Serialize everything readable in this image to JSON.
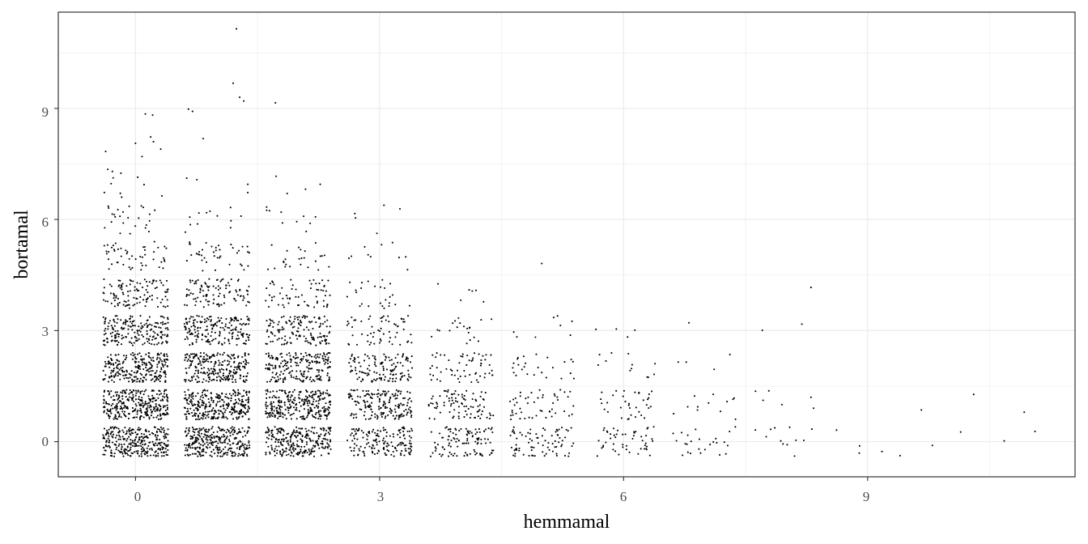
{
  "chart_data": {
    "type": "scatter",
    "title": "",
    "xlabel": "hemmamal",
    "ylabel": "bortamal",
    "xlim": [
      -0.95,
      11.55
    ],
    "ylim": [
      -0.95,
      11.6
    ],
    "xticks": [
      0,
      3,
      6,
      9
    ],
    "yticks": [
      0,
      3,
      6,
      9
    ],
    "x_tick_labels": [
      "0",
      "3",
      "6",
      "9"
    ],
    "y_tick_labels": [
      "0",
      "3",
      "6",
      "9"
    ],
    "grid": true,
    "legend": "none",
    "jitter": 0.4,
    "colors": {
      "point": "#000000",
      "grid": "#ebebeb",
      "panel_border": "#333333",
      "tick_label": "#4d4d4d"
    },
    "cell_counts": [
      [
        0,
        0,
        300
      ],
      [
        0,
        1,
        300
      ],
      [
        0,
        2,
        250
      ],
      [
        0,
        3,
        200
      ],
      [
        0,
        4,
        110
      ],
      [
        0,
        5,
        50
      ],
      [
        0,
        6,
        25
      ],
      [
        0,
        7,
        10
      ],
      [
        0,
        8,
        3
      ],
      [
        1,
        0,
        300
      ],
      [
        1,
        1,
        300
      ],
      [
        1,
        2,
        250
      ],
      [
        1,
        3,
        190
      ],
      [
        1,
        4,
        100
      ],
      [
        1,
        5,
        40
      ],
      [
        1,
        6,
        12
      ],
      [
        1,
        7,
        3
      ],
      [
        1,
        8,
        1
      ],
      [
        2,
        0,
        260
      ],
      [
        2,
        1,
        280
      ],
      [
        2,
        2,
        210
      ],
      [
        2,
        3,
        140
      ],
      [
        2,
        4,
        60
      ],
      [
        2,
        5,
        25
      ],
      [
        2,
        6,
        10
      ],
      [
        2,
        7,
        3
      ],
      [
        3,
        0,
        160
      ],
      [
        3,
        1,
        180
      ],
      [
        3,
        2,
        130
      ],
      [
        3,
        3,
        60
      ],
      [
        3,
        4,
        25
      ],
      [
        3,
        5,
        10
      ],
      [
        3,
        6,
        5
      ],
      [
        4,
        0,
        110
      ],
      [
        4,
        1,
        90
      ],
      [
        4,
        2,
        60
      ],
      [
        4,
        3,
        20
      ],
      [
        4,
        4,
        6
      ],
      [
        5,
        0,
        80
      ],
      [
        5,
        1,
        50
      ],
      [
        5,
        2,
        25
      ],
      [
        5,
        3,
        8
      ],
      [
        5,
        5,
        1
      ],
      [
        6,
        0,
        50
      ],
      [
        6,
        1,
        35
      ],
      [
        6,
        2,
        12
      ],
      [
        6,
        3,
        4
      ],
      [
        7,
        0,
        25
      ],
      [
        7,
        1,
        12
      ],
      [
        7,
        2,
        4
      ],
      [
        7,
        3,
        1
      ],
      [
        8,
        0,
        12
      ],
      [
        8,
        1,
        6
      ],
      [
        8,
        3,
        2
      ],
      [
        8,
        4,
        1
      ],
      [
        9,
        0,
        5
      ],
      [
        10,
        0,
        2
      ],
      [
        10,
        1,
        2
      ],
      [
        11,
        0,
        2
      ],
      [
        11,
        1,
        1
      ]
    ],
    "outliers": [
      [
        1.24,
        11.15
      ],
      [
        1.2,
        9.68
      ],
      [
        1.28,
        9.3
      ],
      [
        1.33,
        9.2
      ],
      [
        1.72,
        9.15
      ],
      [
        0.65,
        8.98
      ],
      [
        0.7,
        8.92
      ],
      [
        0.12,
        8.85
      ],
      [
        0.21,
        8.82
      ],
      [
        -0.18,
        7.25
      ],
      [
        0.08,
        7.7
      ],
      [
        0.22,
        8.1
      ],
      [
        0.31,
        7.9
      ],
      [
        1.38,
        6.95
      ],
      [
        2.27,
        6.95
      ]
    ]
  }
}
